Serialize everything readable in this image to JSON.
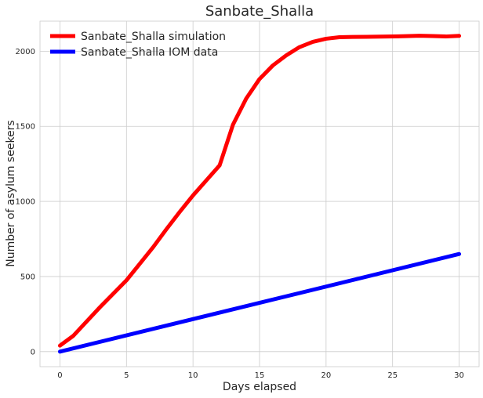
{
  "chart_data": {
    "type": "line",
    "title": "Sanbate_Shalla",
    "xlabel": "Days elapsed",
    "ylabel": "Number of asylum seekers",
    "xlim": [
      -1.5,
      31.5
    ],
    "ylim": [
      -100,
      2200
    ],
    "xticks": [
      0,
      5,
      10,
      15,
      20,
      25,
      30
    ],
    "yticks": [
      0,
      500,
      1000,
      1500,
      2000
    ],
    "grid": true,
    "legend_position": "top-left",
    "series": [
      {
        "name": "Sanbate_Shalla simulation",
        "color": "#ff0000",
        "x": [
          0,
          1,
          2,
          3,
          4,
          5,
          6,
          7,
          8,
          9,
          10,
          11,
          12,
          13,
          14,
          15,
          16,
          17,
          18,
          19,
          20,
          21,
          22,
          23,
          24,
          25,
          26,
          27,
          28,
          29,
          30
        ],
        "y": [
          40,
          105,
          200,
          295,
          385,
          475,
          585,
          695,
          815,
          930,
          1040,
          1140,
          1240,
          1510,
          1685,
          1815,
          1905,
          1972,
          2027,
          2062,
          2083,
          2093,
          2095,
          2096,
          2097,
          2098,
          2100,
          2103,
          2101,
          2098,
          2102
        ]
      },
      {
        "name": "Sanbate_Shalla IOM data",
        "color": "#0000ff",
        "x": [
          0,
          30
        ],
        "y": [
          0,
          650
        ]
      }
    ]
  }
}
